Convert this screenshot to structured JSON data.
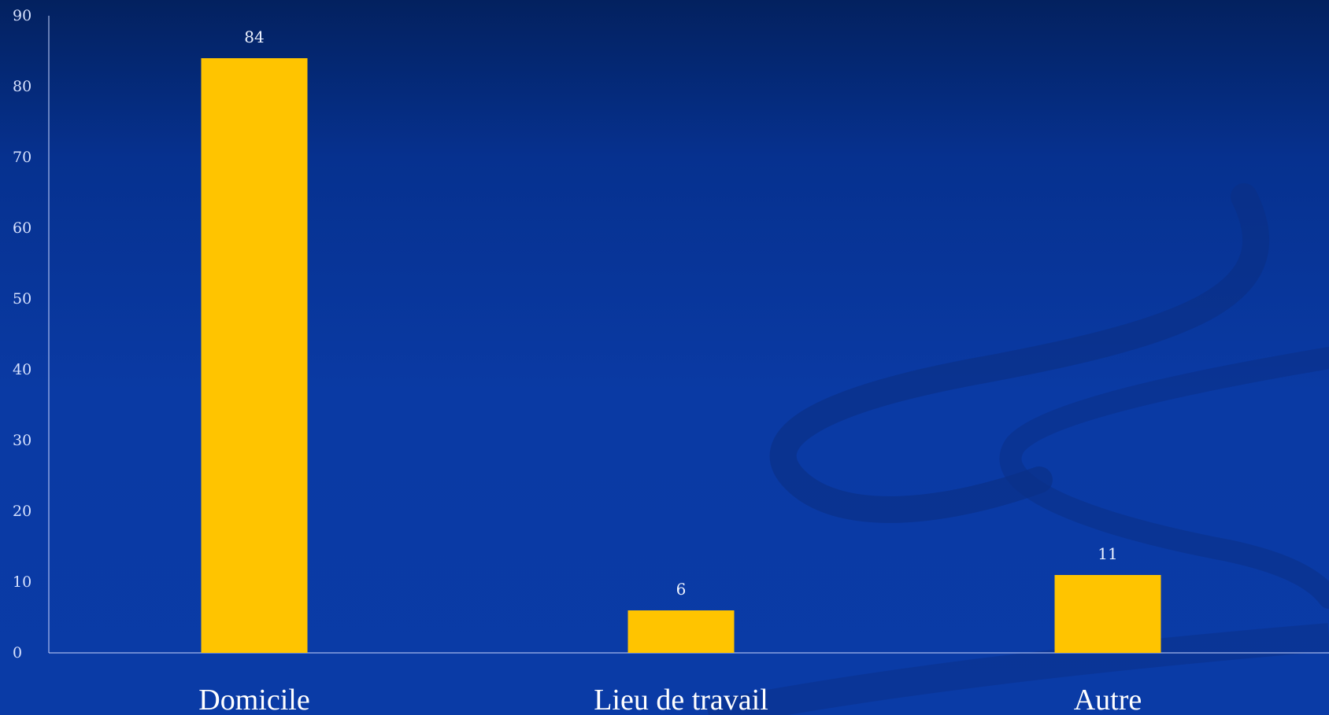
{
  "chart_data": {
    "type": "bar",
    "categories": [
      "Domicile",
      "Lieu de travail",
      "Autre"
    ],
    "values": [
      84,
      6,
      11
    ],
    "data_labels": [
      "84",
      "6",
      "11"
    ],
    "ylim": [
      0,
      90
    ],
    "yticks": [
      0,
      10,
      20,
      30,
      40,
      50,
      60,
      70,
      80,
      90
    ],
    "grid": false,
    "legend": "none",
    "colors": {
      "bar": "#ffc400",
      "axis": "#c9d6ff",
      "background_top": "#03215f",
      "background_bottom": "#0a3ba6",
      "swoosh": "#0b2f86"
    }
  }
}
